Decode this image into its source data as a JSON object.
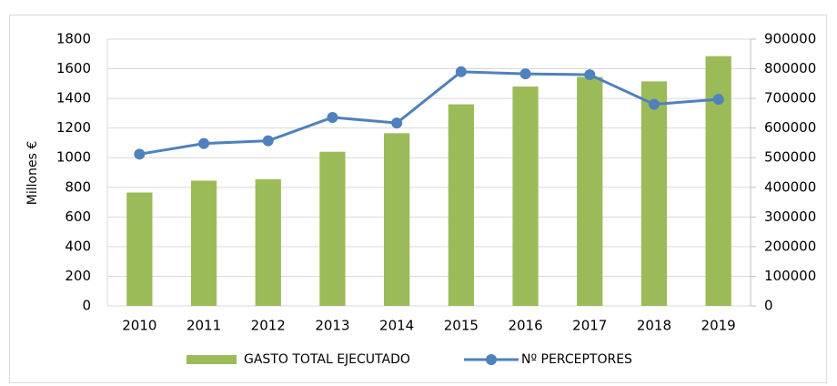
{
  "chart_data": {
    "type": "bar",
    "categories": [
      "2010",
      "2011",
      "2012",
      "2013",
      "2014",
      "2015",
      "2016",
      "2017",
      "2018",
      "2019"
    ],
    "ylabel": "Millones €",
    "ylim": [
      0,
      1800
    ],
    "yticks": [
      0,
      200,
      400,
      600,
      800,
      1000,
      1200,
      1400,
      1600,
      1800
    ],
    "y2lim": [
      0,
      900000
    ],
    "y2ticks": [
      0,
      100000,
      200000,
      300000,
      400000,
      500000,
      600000,
      700000,
      800000,
      900000
    ],
    "grid": true,
    "legend": "bottom",
    "series": [
      {
        "name": "GASTO TOTAL EJECUTADO",
        "type": "bar",
        "color": "#9bbb59",
        "values": [
          765,
          845,
          855,
          1040,
          1165,
          1360,
          1480,
          1545,
          1515,
          1685
        ]
      },
      {
        "name": "Nº PERCEPTORES",
        "type": "line",
        "axis": "y2",
        "color": "#4f81bd",
        "values": [
          512000,
          548000,
          557000,
          636000,
          617000,
          790000,
          783000,
          780000,
          680000,
          697000
        ]
      }
    ]
  }
}
